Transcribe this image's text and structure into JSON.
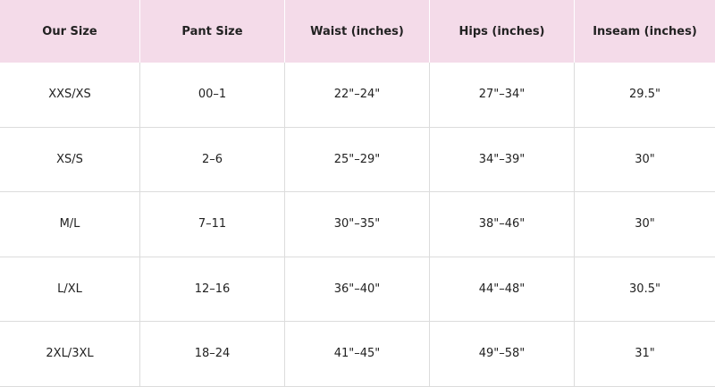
{
  "table": {
    "header": [
      "Our Size",
      "Pant Size",
      "Waist (inches)",
      "Hips (inches)",
      "Inseam (inches)"
    ],
    "rows": [
      [
        "XXS/XS",
        "00–1",
        "22\"–24\"",
        "27\"–34\"",
        "29.5\""
      ],
      [
        "XS/S",
        "2–6",
        "25\"–29\"",
        "34\"–39\"",
        "30\""
      ],
      [
        "M/L",
        "7–11",
        "30\"–35\"",
        "38\"–46\"",
        "30\""
      ],
      [
        "L/XL",
        "12–16",
        "36\"–40\"",
        "44\"–48\"",
        "30.5\""
      ],
      [
        "2XL/3XL",
        "18–24",
        "41\"–45\"",
        "49\"–58\"",
        "31\""
      ]
    ]
  }
}
